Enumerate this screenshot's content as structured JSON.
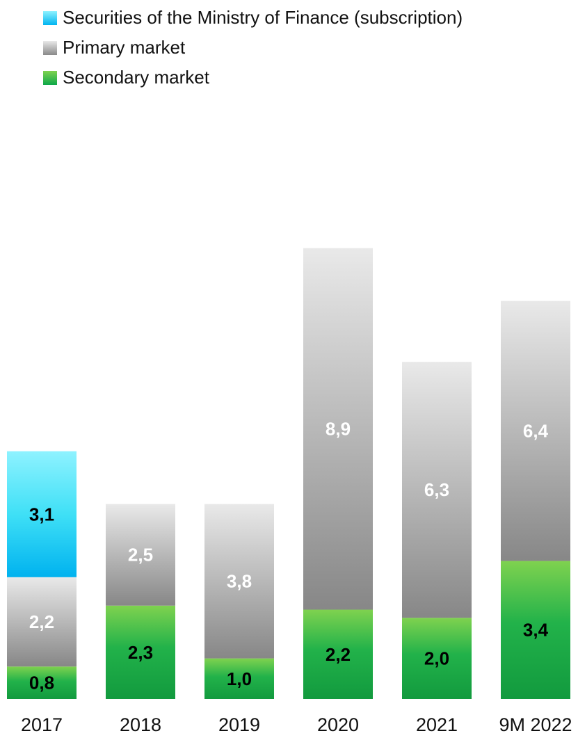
{
  "chart_data": {
    "type": "bar",
    "stacked": true,
    "categories": [
      "2017",
      "2018",
      "2019",
      "2020",
      "2021",
      "9M 2022"
    ],
    "series": [
      {
        "name": "Secondary market",
        "values": [
          0.8,
          2.3,
          1.0,
          2.2,
          2.0,
          3.4
        ],
        "labels": [
          "0,8",
          "2,3",
          "1,0",
          "2,2",
          "2,0",
          "3,4"
        ],
        "label_color": "#000000"
      },
      {
        "name": "Primary market",
        "values": [
          2.2,
          2.5,
          3.8,
          8.9,
          6.3,
          6.4
        ],
        "labels": [
          "2,2",
          "2,5",
          "3,8",
          "8,9",
          "6,3",
          "6,4"
        ],
        "label_color": "#ffffff"
      },
      {
        "name": "Securities of the Ministry of Finance (subscription)",
        "values": [
          3.1,
          null,
          null,
          null,
          null,
          null
        ],
        "labels": [
          "3,1",
          "",
          "",
          "",
          "",
          ""
        ],
        "label_color": "#000000"
      }
    ],
    "legend_position": "top-left",
    "grid": false,
    "colors": {
      "ministry_top": "#8ef2ff",
      "ministry_bottom": "#00b4f0",
      "primary_top": "#e8e8e8",
      "primary_bottom": "#8a8a8a",
      "secondary_top": "#7fd24f",
      "secondary_bottom": "#16a34a"
    }
  },
  "legend": [
    {
      "label": "Securities of the Ministry of Finance (subscription)",
      "swatch": "ministry"
    },
    {
      "label": "Primary market",
      "swatch": "primary"
    },
    {
      "label": "Secondary market",
      "swatch": "secondary"
    }
  ]
}
